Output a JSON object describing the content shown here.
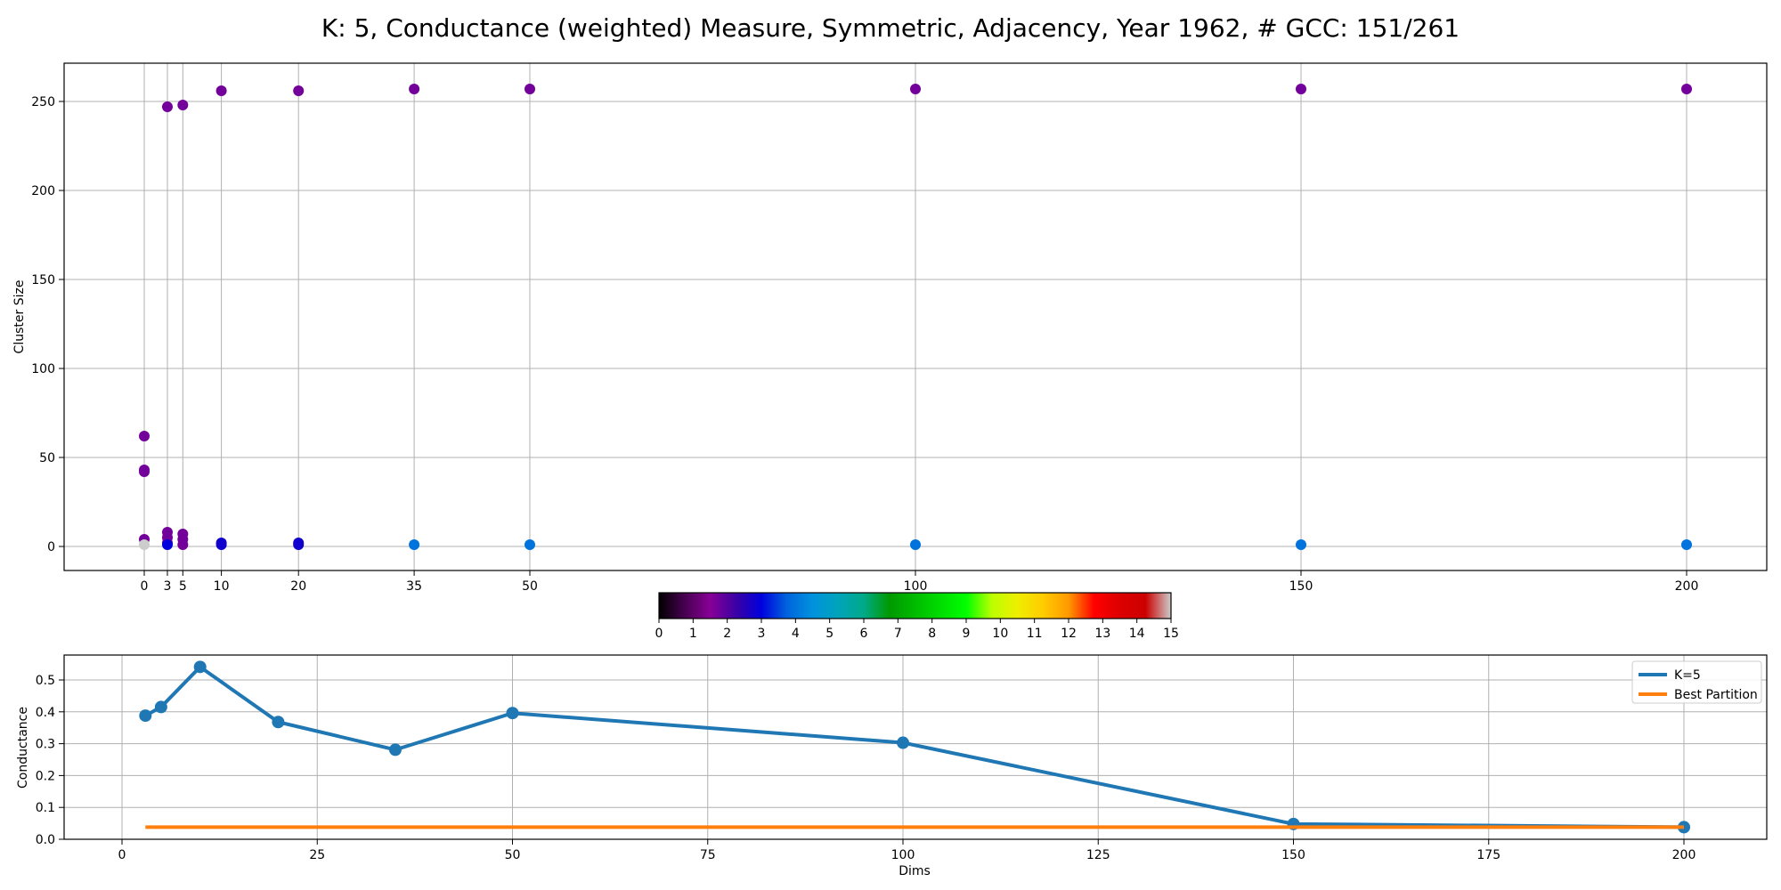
{
  "title": "K: 5, Conductance (weighted) Measure, Symmetric, Adjacency, Year 1962, # GCC: 151/261",
  "chart_data": [
    {
      "type": "scatter",
      "ylabel": "Cluster Size",
      "xlabel": "",
      "x_ticks": [
        0,
        3,
        5,
        10,
        20,
        35,
        50,
        100,
        150,
        200
      ],
      "y_ticks": [
        0,
        50,
        100,
        150,
        200,
        250
      ],
      "ylim": [
        -14,
        272
      ],
      "grid": true,
      "points": [
        {
          "x": 0,
          "y": 62,
          "c": 1.7
        },
        {
          "x": 0,
          "y": 43,
          "c": 1.7
        },
        {
          "x": 0,
          "y": 42,
          "c": 1.7
        },
        {
          "x": 0,
          "y": 4,
          "c": 1.7
        },
        {
          "x": 0,
          "y": 1,
          "c": 15
        },
        {
          "x": 3,
          "y": 247,
          "c": 1.7
        },
        {
          "x": 3,
          "y": 8,
          "c": 1.7
        },
        {
          "x": 3,
          "y": 5,
          "c": 1.7
        },
        {
          "x": 3,
          "y": 2,
          "c": 1.7
        },
        {
          "x": 3,
          "y": 1,
          "c": 3
        },
        {
          "x": 5,
          "y": 248,
          "c": 1.7
        },
        {
          "x": 5,
          "y": 7,
          "c": 1.7
        },
        {
          "x": 5,
          "y": 4,
          "c": 1.7
        },
        {
          "x": 5,
          "y": 1,
          "c": 1.7
        },
        {
          "x": 10,
          "y": 256,
          "c": 1.7
        },
        {
          "x": 10,
          "y": 2,
          "c": 2.8
        },
        {
          "x": 10,
          "y": 1,
          "c": 2.8
        },
        {
          "x": 20,
          "y": 256,
          "c": 1.7
        },
        {
          "x": 20,
          "y": 2,
          "c": 2.8
        },
        {
          "x": 20,
          "y": 1,
          "c": 2.8
        },
        {
          "x": 35,
          "y": 257,
          "c": 1.7
        },
        {
          "x": 35,
          "y": 1,
          "c": 4
        },
        {
          "x": 50,
          "y": 257,
          "c": 1.7
        },
        {
          "x": 50,
          "y": 1,
          "c": 4
        },
        {
          "x": 100,
          "y": 257,
          "c": 1.7
        },
        {
          "x": 100,
          "y": 1,
          "c": 4
        },
        {
          "x": 150,
          "y": 257,
          "c": 1.7
        },
        {
          "x": 150,
          "y": 1,
          "c": 4
        },
        {
          "x": 200,
          "y": 257,
          "c": 1.7
        },
        {
          "x": 200,
          "y": 1,
          "c": 4
        }
      ]
    },
    {
      "type": "colorbar",
      "ticks": [
        0,
        1,
        2,
        3,
        4,
        5,
        6,
        7,
        8,
        9,
        10,
        11,
        12,
        13,
        14,
        15
      ],
      "colormap": "nipy_spectral"
    },
    {
      "type": "line",
      "xlabel": "Dims",
      "ylabel": "Conductance",
      "x_ticks": [
        0,
        25,
        50,
        75,
        100,
        125,
        150,
        175,
        200
      ],
      "y_ticks": [
        0.0,
        0.1,
        0.2,
        0.3,
        0.4,
        0.5
      ],
      "y_tick_labels": [
        "0.0",
        "0.1",
        "0.2",
        "0.3",
        "0.4",
        "0.5"
      ],
      "xlim": [
        -9,
        210
      ],
      "ylim": [
        0,
        0.58
      ],
      "grid": true,
      "legend_position": "top-right",
      "series": [
        {
          "name": "K=5",
          "color": "#1f77b4",
          "x": [
            3,
            5,
            10,
            20,
            35,
            50,
            100,
            150,
            200
          ],
          "y": [
            0.388,
            0.415,
            0.541,
            0.368,
            0.281,
            0.396,
            0.303,
            0.048,
            0.038
          ]
        },
        {
          "name": "Best Partition",
          "color": "#ff7f0e",
          "x": [
            3,
            200
          ],
          "y": [
            0.038,
            0.038
          ]
        }
      ]
    }
  ]
}
